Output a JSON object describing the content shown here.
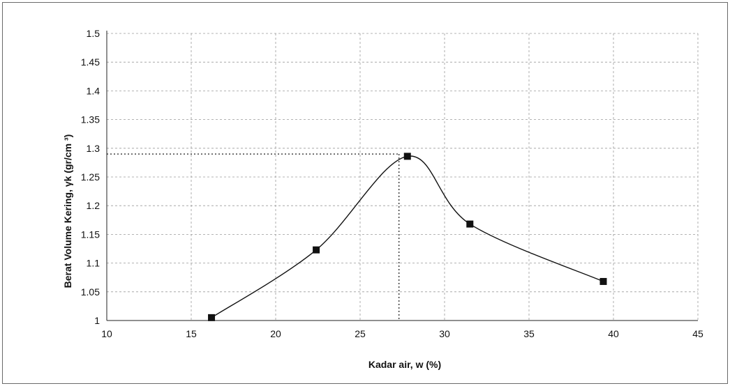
{
  "chart_data": {
    "type": "line",
    "title": "",
    "xlabel": "Kadar air, w (%)",
    "ylabel": "Berat Volume Kering,  γk (gr/cm ³)",
    "xlim": [
      10,
      45
    ],
    "ylim": [
      1,
      1.5
    ],
    "x_ticks": [
      10,
      15,
      20,
      25,
      30,
      35,
      40,
      45
    ],
    "y_ticks": [
      1,
      1.05,
      1.1,
      1.15,
      1.2,
      1.25,
      1.3,
      1.35,
      1.4,
      1.45,
      1.5
    ],
    "grid": true,
    "smooth": true,
    "series": [
      {
        "x": [
          16.2,
          22.4,
          27.8,
          31.5,
          39.4
        ],
        "y": [
          1.005,
          1.123,
          1.286,
          1.168,
          1.068
        ],
        "marker": "square"
      }
    ],
    "reference_lines": [
      {
        "kind": "max_dry_density",
        "y": 1.29,
        "x": 27.3
      }
    ],
    "colors": {
      "line": "#111111",
      "marker": "#111111",
      "grid": "#9a9a9a",
      "reference": "#333333"
    }
  }
}
